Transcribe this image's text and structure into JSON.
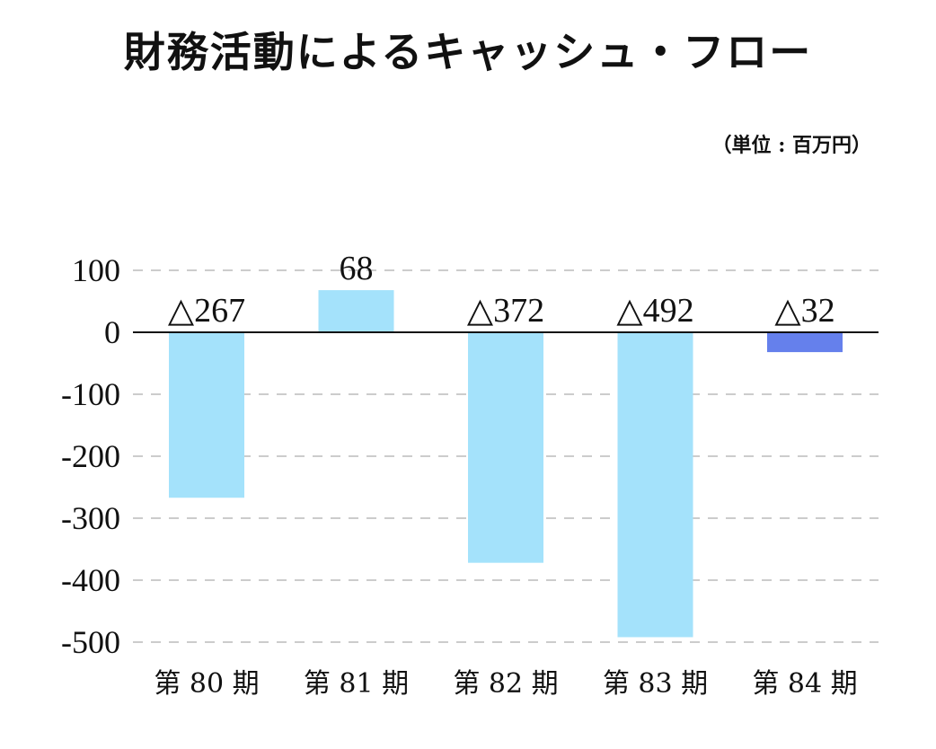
{
  "chart_data": {
    "type": "bar",
    "title": "財務活動によるキャッシュ・フロー",
    "unit_note": "（単位 : 百万円）",
    "categories": [
      "第 80 期",
      "第 81 期",
      "第 82 期",
      "第 83 期",
      "第 84 期"
    ],
    "values": [
      -267,
      68,
      -372,
      -492,
      -32
    ],
    "data_labels": [
      "△267",
      "68",
      "△372",
      "△492",
      "△32"
    ],
    "bar_colors": [
      "#a4e2fb",
      "#a4e2fb",
      "#a4e2fb",
      "#a4e2fb",
      "#6580ec"
    ],
    "ylim": [
      -500,
      100
    ],
    "yticks": [
      100,
      0,
      -100,
      -200,
      -300,
      -400,
      -500
    ],
    "ytick_labels": [
      "100",
      "0",
      "-100",
      "-200",
      "-300",
      "-400",
      "-500"
    ],
    "grid": true,
    "grid_style": "dashed",
    "xlabel": "",
    "ylabel": ""
  }
}
